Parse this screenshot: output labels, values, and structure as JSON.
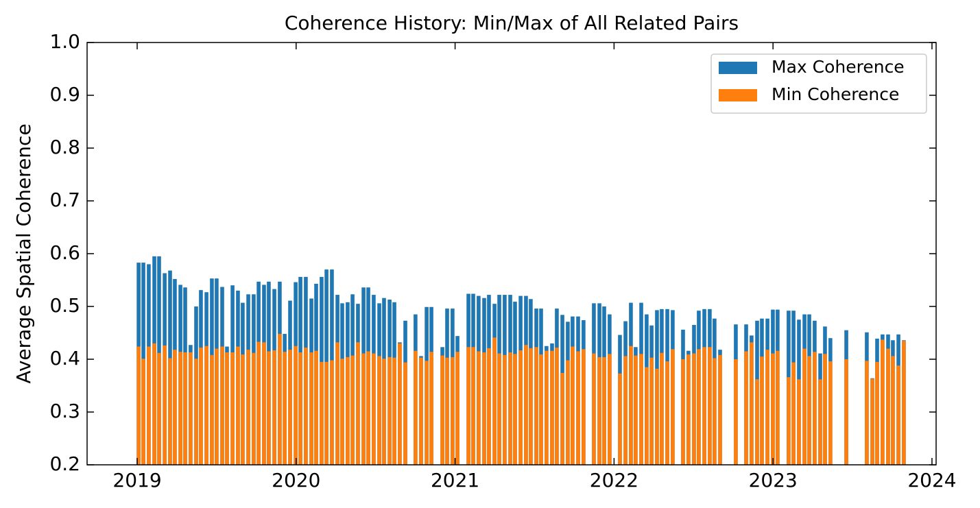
{
  "chart_data": {
    "type": "bar",
    "title": "Coherence History: Min/Max of All Related Pairs",
    "y_label": "Average Spatial Coherence",
    "x": [
      2019.009,
      2019.039,
      2019.073,
      2019.108,
      2019.138,
      2019.173,
      2019.207,
      2019.237,
      2019.272,
      2019.302,
      2019.336,
      2019.371,
      2019.401,
      2019.436,
      2019.47,
      2019.5,
      2019.535,
      2019.565,
      2019.6,
      2019.634,
      2019.664,
      2019.699,
      2019.733,
      2019.764,
      2019.798,
      2019.828,
      2019.863,
      2019.897,
      2019.928,
      2019.962,
      2019.997,
      2020.027,
      2020.061,
      2020.096,
      2020.126,
      2020.16,
      2020.191,
      2020.225,
      2020.26,
      2020.29,
      2020.324,
      2020.355,
      2020.389,
      2020.424,
      2020.454,
      2020.488,
      2020.523,
      2020.553,
      2020.588,
      2020.618,
      2020.652,
      2020.687,
      2020.751,
      2020.786,
      2020.821,
      2020.851,
      2020.92,
      2020.95,
      2020.984,
      2021.015,
      2021.084,
      2021.114,
      2021.148,
      2021.183,
      2021.213,
      2021.248,
      2021.278,
      2021.312,
      2021.347,
      2021.377,
      2021.412,
      2021.446,
      2021.476,
      2021.511,
      2021.541,
      2021.575,
      2021.61,
      2021.64,
      2021.675,
      2021.709,
      2021.739,
      2021.774,
      2021.808,
      2021.873,
      2021.908,
      2021.938,
      2021.972,
      2022.037,
      2022.072,
      2022.106,
      2022.136,
      2022.171,
      2022.205,
      2022.236,
      2022.27,
      2022.3,
      2022.335,
      2022.369,
      2022.434,
      2022.468,
      2022.503,
      2022.533,
      2022.568,
      2022.602,
      2022.632,
      2022.667,
      2022.766,
      2022.831,
      2022.865,
      2022.9,
      2022.93,
      2022.965,
      2022.999,
      2023.029,
      2023.098,
      2023.129,
      2023.163,
      2023.198,
      2023.228,
      2023.262,
      2023.297,
      2023.327,
      2023.361,
      2023.461,
      2023.59,
      2023.625,
      2023.655,
      2023.689,
      2023.724,
      2023.754,
      2023.789,
      2023.823
    ],
    "series": [
      {
        "name": "Max Coherence",
        "color": "#1f77b4",
        "values": [
          0.583,
          0.583,
          0.58,
          0.595,
          0.595,
          0.563,
          0.568,
          0.552,
          0.541,
          0.536,
          0.427,
          0.5,
          0.531,
          0.527,
          0.553,
          0.553,
          0.537,
          0.424,
          0.54,
          0.53,
          0.507,
          0.523,
          0.523,
          0.547,
          0.541,
          0.547,
          0.533,
          0.547,
          0.448,
          0.511,
          0.546,
          0.556,
          0.556,
          0.515,
          0.543,
          0.556,
          0.57,
          0.57,
          0.522,
          0.506,
          0.508,
          0.523,
          0.505,
          0.536,
          0.536,
          0.522,
          0.506,
          0.516,
          0.513,
          0.508,
          0.432,
          0.473,
          0.485,
          0.406,
          0.499,
          0.499,
          0.423,
          0.496,
          0.496,
          0.444,
          0.524,
          0.524,
          0.52,
          0.516,
          0.522,
          0.505,
          0.522,
          0.522,
          0.522,
          0.509,
          0.52,
          0.52,
          0.514,
          0.496,
          0.496,
          0.425,
          0.43,
          0.496,
          0.484,
          0.471,
          0.481,
          0.481,
          0.474,
          0.506,
          0.506,
          0.5,
          0.485,
          0.446,
          0.472,
          0.507,
          0.423,
          0.507,
          0.485,
          0.464,
          0.493,
          0.495,
          0.495,
          0.493,
          0.456,
          0.416,
          0.465,
          0.492,
          0.495,
          0.495,
          0.477,
          0.418,
          0.466,
          0.466,
          0.445,
          0.473,
          0.477,
          0.477,
          0.494,
          0.494,
          0.492,
          0.492,
          0.475,
          0.485,
          0.485,
          0.473,
          0.411,
          0.462,
          0.44,
          0.455,
          0.451,
          0.364,
          0.439,
          0.447,
          0.447,
          0.436,
          0.447,
          0.436
        ]
      },
      {
        "name": "Min Coherence",
        "color": "#ff7f0e",
        "values": [
          0.424,
          0.401,
          0.424,
          0.43,
          0.412,
          0.426,
          0.402,
          0.418,
          0.414,
          0.413,
          0.413,
          0.401,
          0.422,
          0.425,
          0.408,
          0.42,
          0.424,
          0.413,
          0.413,
          0.424,
          0.409,
          0.418,
          0.412,
          0.433,
          0.432,
          0.415,
          0.417,
          0.448,
          0.414,
          0.418,
          0.425,
          0.413,
          0.422,
          0.413,
          0.416,
          0.395,
          0.395,
          0.398,
          0.432,
          0.401,
          0.404,
          0.407,
          0.432,
          0.411,
          0.415,
          0.411,
          0.406,
          0.401,
          0.404,
          0.403,
          0.43,
          0.394,
          0.416,
          0.403,
          0.397,
          0.414,
          0.407,
          0.403,
          0.404,
          0.414,
          0.423,
          0.423,
          0.415,
          0.413,
          0.421,
          0.441,
          0.411,
          0.408,
          0.413,
          0.41,
          0.417,
          0.427,
          0.421,
          0.423,
          0.409,
          0.416,
          0.416,
          0.422,
          0.374,
          0.398,
          0.424,
          0.415,
          0.419,
          0.411,
          0.404,
          0.404,
          0.41,
          0.373,
          0.406,
          0.425,
          0.407,
          0.41,
          0.385,
          0.403,
          0.382,
          0.412,
          0.396,
          0.419,
          0.4,
          0.409,
          0.411,
          0.419,
          0.423,
          0.423,
          0.402,
          0.408,
          0.4,
          0.415,
          0.432,
          0.362,
          0.405,
          0.418,
          0.411,
          0.416,
          0.366,
          0.394,
          0.362,
          0.42,
          0.406,
          0.414,
          0.362,
          0.41,
          0.396,
          0.4,
          0.397,
          0.363,
          0.395,
          0.437,
          0.42,
          0.406,
          0.388,
          0.435
        ]
      }
    ],
    "xlim": [
      2018.685,
      2024.026
    ],
    "xticks": [
      2019,
      2020,
      2021,
      2022,
      2023,
      2024
    ],
    "ylim": [
      0.2,
      1.0
    ],
    "yticks": [
      0.2,
      0.3,
      0.4,
      0.5,
      0.6,
      0.7,
      0.8,
      0.9,
      {
        "value": 1,
        "label": "1.0"
      }
    ],
    "legend": "upper right"
  }
}
